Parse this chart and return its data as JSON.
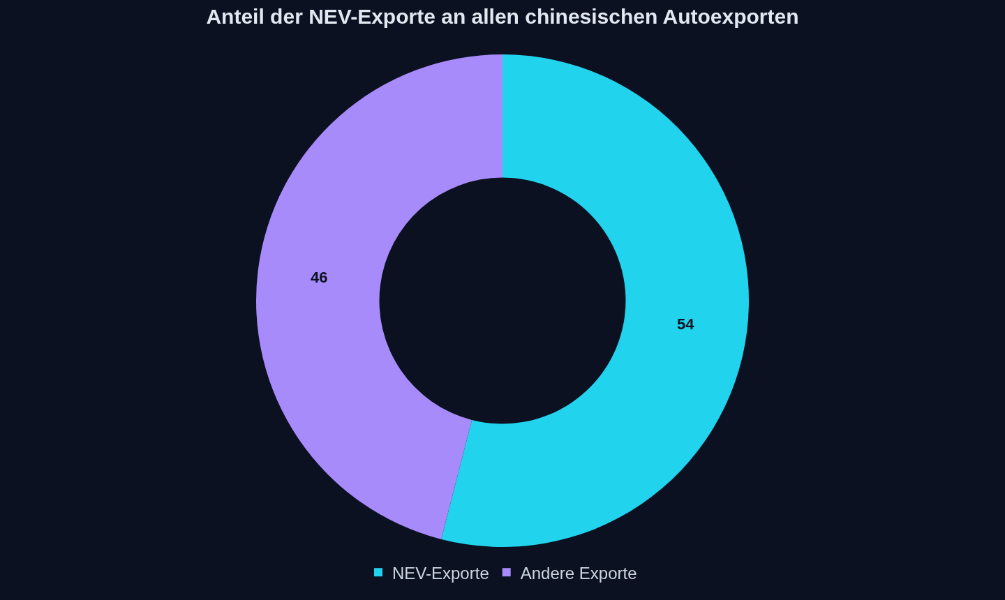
{
  "chart_data": {
    "type": "donut",
    "title": "Anteil der NEV-Exporte an allen chinesischen Autoexporten",
    "categories": [
      "NEV-Exporte",
      "Andere Exporte"
    ],
    "values": [
      54,
      46
    ],
    "colors": [
      "#22d3ee",
      "#a78bfa"
    ],
    "data_labels": true,
    "legend": "bottom"
  }
}
